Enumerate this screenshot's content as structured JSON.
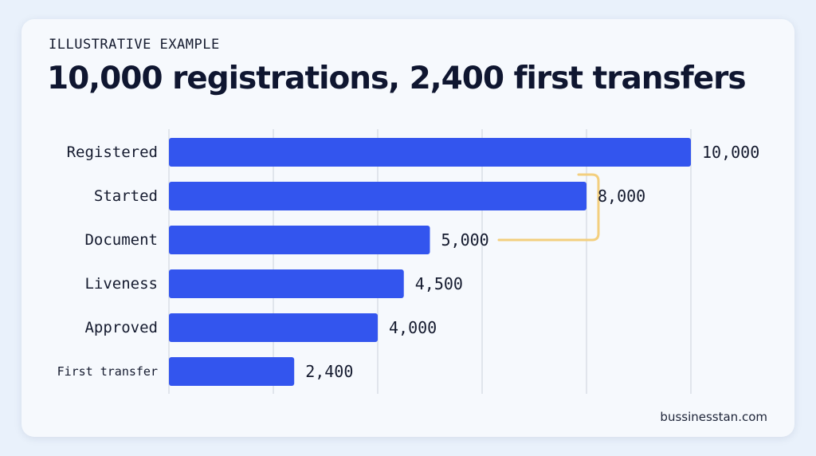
{
  "header": {
    "kicker": "ILLUSTRATIVE EXAMPLE",
    "title": "10,000 registrations, 2,400 first transfers"
  },
  "footer": {
    "source": "bussinesstan.com"
  },
  "colors": {
    "bar": "#3355ee",
    "grid": "#d3d8e0",
    "bracket": "#f3cf7e"
  },
  "chart_data": {
    "type": "bar",
    "orientation": "horizontal",
    "title": "10,000 registrations, 2,400 first transfers",
    "categories": [
      "Registered",
      "Started",
      "Document",
      "Liveness",
      "Approved",
      "First transfer"
    ],
    "values": [
      10000,
      8000,
      5000,
      4500,
      4000,
      2400
    ],
    "value_labels": [
      "10,000",
      "8,000",
      "5,000",
      "4,500",
      "4,000",
      "2,400"
    ],
    "xlim": [
      0,
      10000
    ],
    "xgrid_values": [
      0,
      2000,
      4000,
      6000,
      8000,
      10000
    ],
    "grid": true,
    "annotation": {
      "type": "bracket",
      "from_category": "Started",
      "to_category": "Document"
    }
  }
}
